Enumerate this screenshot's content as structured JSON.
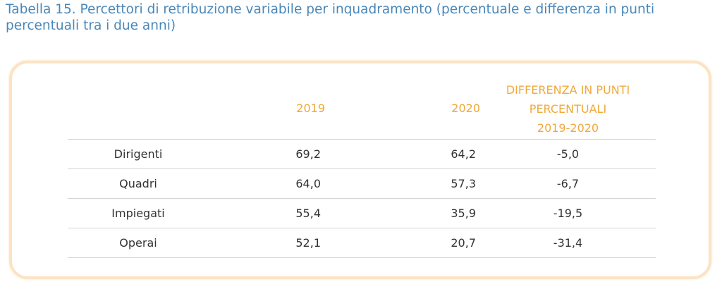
{
  "caption": {
    "line1": "Tabella 15. Percettori di retribuzione variabile per inquadramento (percentuale e differenza in punti",
    "line2": "percentuali tra i due anni)"
  },
  "table": {
    "headers": {
      "blank": "",
      "y2019": "2019",
      "y2020": "2020",
      "diff_line1": "DIFFERENZA IN PUNTI",
      "diff_line2": "PERCENTUALI",
      "diff_line3": "2019-2020"
    },
    "rows": [
      {
        "label": "Dirigenti",
        "v2019": "69,2",
        "v2020": "64,2",
        "diff": "-5,0"
      },
      {
        "label": "Quadri",
        "v2019": "64,0",
        "v2020": "57,3",
        "diff": "-6,7"
      },
      {
        "label": "Impiegati",
        "v2019": "55,4",
        "v2020": "35,9",
        "diff": "-19,5"
      },
      {
        "label": "Operai",
        "v2019": "52,1",
        "v2020": "20,7",
        "diff": "-31,4"
      }
    ]
  },
  "colors": {
    "caption": "#4a87b8",
    "header": "#f0a93b",
    "frame": "#fbe3c4",
    "text": "#333333"
  }
}
